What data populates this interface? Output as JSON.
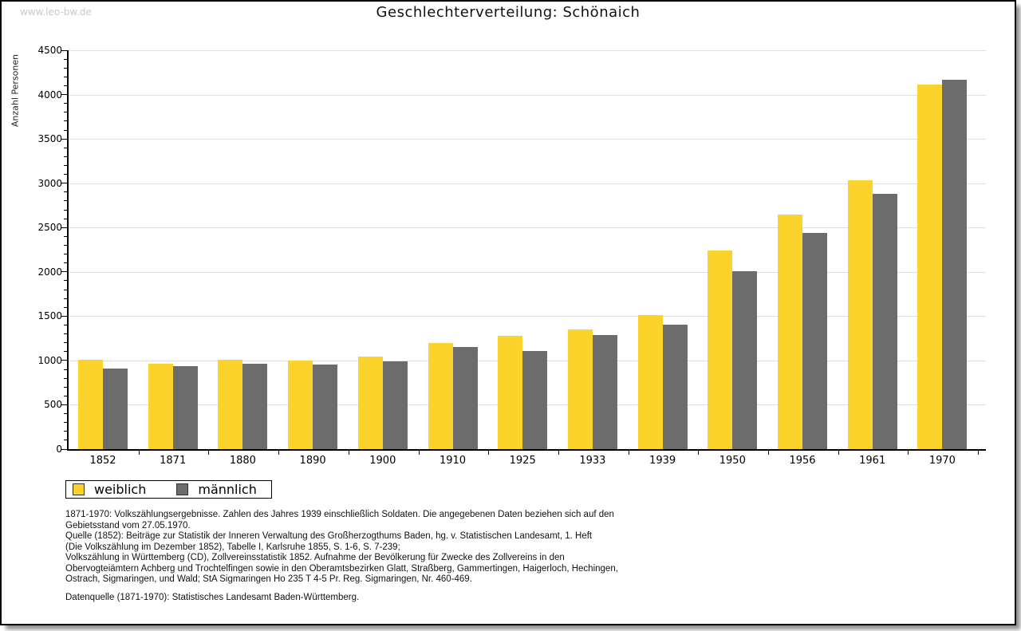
{
  "watermark": "www.leo-bw.de",
  "title": "Geschlechterverteilung: Schönaich",
  "chart_data": {
    "type": "bar",
    "title": "Geschlechterverteilung: Schönaich",
    "xlabel": "",
    "ylabel": "Anzahl Personen",
    "ylim": [
      0,
      4500
    ],
    "ytick_step": 500,
    "yminor_step": 100,
    "grid": true,
    "legend_position": "bottom-left",
    "categories": [
      "1852",
      "1871",
      "1880",
      "1890",
      "1900",
      "1910",
      "1925",
      "1933",
      "1939",
      "1950",
      "1956",
      "1961",
      "1970"
    ],
    "series": [
      {
        "name": "weiblich",
        "color": "#FCD32B",
        "values": [
          1005,
          965,
          1005,
          995,
          1045,
          1200,
          1280,
          1350,
          1510,
          2245,
          2650,
          3030,
          4110
        ]
      },
      {
        "name": "männlich",
        "color": "#6C6C6C",
        "values": [
          910,
          940,
          965,
          955,
          990,
          1150,
          1110,
          1290,
          1400,
          2010,
          2440,
          2880,
          4165
        ]
      }
    ]
  },
  "footnotes": {
    "lines": [
      "1871-1970: Volkszählungsergebnisse. Zahlen des Jahres 1939 einschließlich Soldaten. Die angegebenen Daten beziehen sich auf den",
      "Gebietsstand vom 27.05.1970.",
      "Quelle (1852): Beiträge zur Statistik der Inneren Verwaltung des Großherzogthums Baden, hg. v. Statistischen Landesamt, 1. Heft",
      "(Die Volkszählung im Dezember 1852), Tabelle I, Karlsruhe 1855, S. 1-6, S. 7-239;",
      "Volkszählung in Württemberg (CD), Zollvereinsstatistik 1852. Aufnahme der Bevölkerung für Zwecke des Zollvereins in den",
      "Obervogteiämtern Achberg und Trochtelfingen sowie in den Oberamtsbezirken Glatt, Straßberg, Gammertingen, Haigerloch, Hechingen,",
      "Ostrach, Sigmaringen, und Wald; StA Sigmaringen Ho 235 T 4-5 Pr. Reg. Sigmaringen, Nr. 460-469."
    ],
    "datasource": "Datenquelle (1871-1970): Statistisches Landesamt Baden-Württemberg."
  }
}
